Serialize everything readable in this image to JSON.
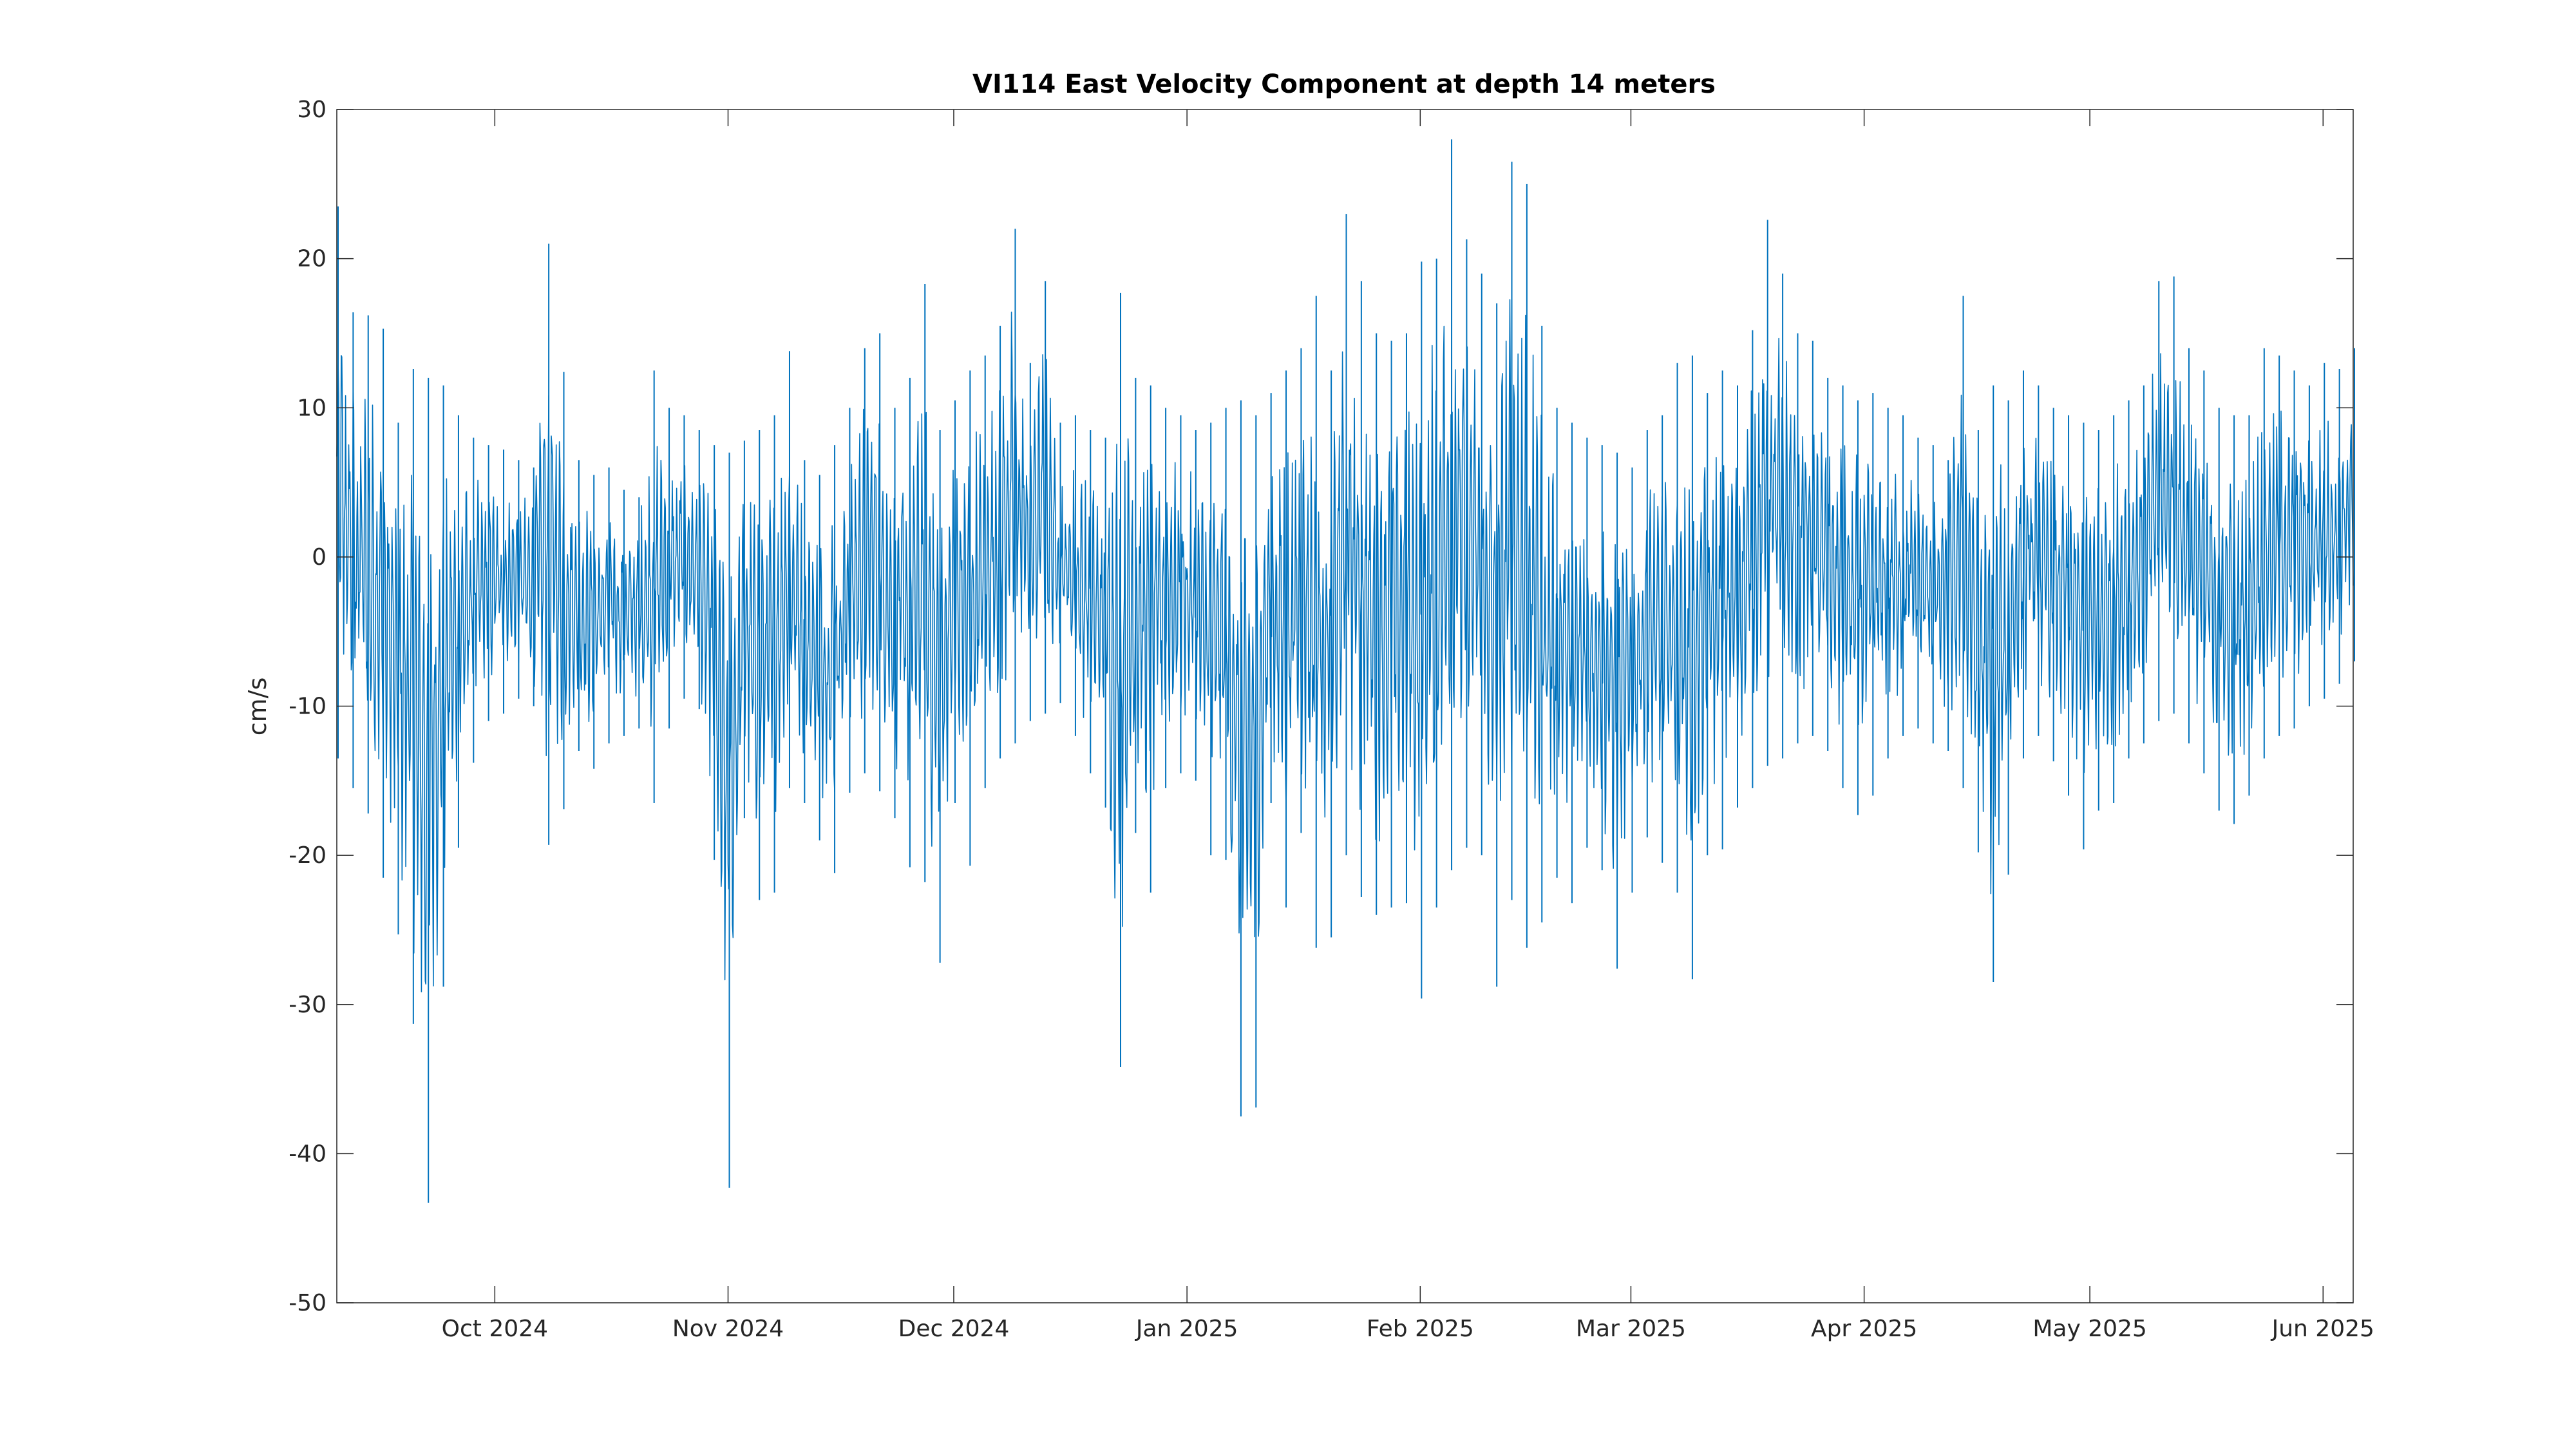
{
  "chart_data": {
    "type": "line",
    "title": "VI114 East Velocity Component at depth 14 meters",
    "xlabel": "",
    "ylabel": "cm/s",
    "xlim": [
      "2024-09-10",
      "2025-06-05"
    ],
    "ylim": [
      -50,
      30
    ],
    "grid": false,
    "x_ticks": [
      {
        "date": "2024-10-01",
        "label": "Oct 2024"
      },
      {
        "date": "2024-11-01",
        "label": "Nov 2024"
      },
      {
        "date": "2024-12-01",
        "label": "Dec 2024"
      },
      {
        "date": "2025-01-01",
        "label": "Jan 2025"
      },
      {
        "date": "2025-02-01",
        "label": "Feb 2025"
      },
      {
        "date": "2025-03-01",
        "label": "Mar 2025"
      },
      {
        "date": "2025-04-01",
        "label": "Apr 2025"
      },
      {
        "date": "2025-05-01",
        "label": "May 2025"
      },
      {
        "date": "2025-06-01",
        "label": "Jun 2025"
      }
    ],
    "y_ticks": [
      30,
      20,
      10,
      0,
      -10,
      -20,
      -30,
      -40,
      -50
    ],
    "series": [
      {
        "color": "#0072BD",
        "x": [
          "2024-09-10",
          "2024-09-12",
          "2024-09-14",
          "2024-09-16",
          "2024-09-18",
          "2024-09-20",
          "2024-09-22",
          "2024-09-24",
          "2024-09-26",
          "2024-09-28",
          "2024-09-30",
          "2024-10-02",
          "2024-10-04",
          "2024-10-06",
          "2024-10-08",
          "2024-10-10",
          "2024-10-12",
          "2024-10-14",
          "2024-10-16",
          "2024-10-18",
          "2024-10-20",
          "2024-10-22",
          "2024-10-24",
          "2024-10-26",
          "2024-10-28",
          "2024-10-30",
          "2024-11-01",
          "2024-11-03",
          "2024-11-05",
          "2024-11-07",
          "2024-11-09",
          "2024-11-11",
          "2024-11-13",
          "2024-11-15",
          "2024-11-17",
          "2024-11-19",
          "2024-11-21",
          "2024-11-23",
          "2024-11-25",
          "2024-11-27",
          "2024-11-29",
          "2024-12-01",
          "2024-12-03",
          "2024-12-05",
          "2024-12-07",
          "2024-12-09",
          "2024-12-11",
          "2024-12-13",
          "2024-12-15",
          "2024-12-17",
          "2024-12-19",
          "2024-12-21",
          "2024-12-23",
          "2024-12-25",
          "2024-12-27",
          "2024-12-29",
          "2024-12-31",
          "2025-01-02",
          "2025-01-04",
          "2025-01-06",
          "2025-01-08",
          "2025-01-10",
          "2025-01-12",
          "2025-01-14",
          "2025-01-16",
          "2025-01-18",
          "2025-01-20",
          "2025-01-22",
          "2025-01-24",
          "2025-01-26",
          "2025-01-28",
          "2025-01-30",
          "2025-02-01",
          "2025-02-03",
          "2025-02-05",
          "2025-02-07",
          "2025-02-09",
          "2025-02-11",
          "2025-02-13",
          "2025-02-15",
          "2025-02-17",
          "2025-02-19",
          "2025-02-21",
          "2025-02-23",
          "2025-02-25",
          "2025-02-27",
          "2025-03-01",
          "2025-03-03",
          "2025-03-05",
          "2025-03-07",
          "2025-03-09",
          "2025-03-11",
          "2025-03-13",
          "2025-03-15",
          "2025-03-17",
          "2025-03-19",
          "2025-03-21",
          "2025-03-23",
          "2025-03-25",
          "2025-03-27",
          "2025-03-29",
          "2025-03-31",
          "2025-04-02",
          "2025-04-04",
          "2025-04-06",
          "2025-04-08",
          "2025-04-10",
          "2025-04-12",
          "2025-04-14",
          "2025-04-16",
          "2025-04-18",
          "2025-04-20",
          "2025-04-22",
          "2025-04-24",
          "2025-04-26",
          "2025-04-28",
          "2025-04-30",
          "2025-05-02",
          "2025-05-04",
          "2025-05-06",
          "2025-05-08",
          "2025-05-10",
          "2025-05-12",
          "2025-05-14",
          "2025-05-16",
          "2025-05-18",
          "2025-05-20",
          "2025-05-22",
          "2025-05-24",
          "2025-05-26",
          "2025-05-28",
          "2025-05-30",
          "2025-06-01",
          "2025-06-03",
          "2025-06-05"
        ],
        "max": [
          23.5,
          16.4,
          16.2,
          15.3,
          9.0,
          12.6,
          12.0,
          11.5,
          9.5,
          8.0,
          7.5,
          7.2,
          6.5,
          6.0,
          21.0,
          12.4,
          6.5,
          5.5,
          6.0,
          4.5,
          4.0,
          12.5,
          10.0,
          9.5,
          8.5,
          7.5,
          7.0,
          7.8,
          8.5,
          9.5,
          13.8,
          6.5,
          5.5,
          7.5,
          10.0,
          14.0,
          15.0,
          10.0,
          12.0,
          18.3,
          8.5,
          10.5,
          12.5,
          13.5,
          15.5,
          22.0,
          13.0,
          18.5,
          9.0,
          9.5,
          8.5,
          8.0,
          17.7,
          12.0,
          11.5,
          10.0,
          9.5,
          8.5,
          9.0,
          10.0,
          10.5,
          9.5,
          11.0,
          12.5,
          14.0,
          17.5,
          12.5,
          23.0,
          18.5,
          15.0,
          14.5,
          15.0,
          19.8,
          20.0,
          28.0,
          21.3,
          19.0,
          17.0,
          26.5,
          25.0,
          15.5,
          10.0,
          9.0,
          8.0,
          7.5,
          7.0,
          6.0,
          8.5,
          9.5,
          13.0,
          13.5,
          11.0,
          12.5,
          11.5,
          15.2,
          22.6,
          19.0,
          15.0,
          14.5,
          12.0,
          11.5,
          10.5,
          11.0,
          10.0,
          9.5,
          8.0,
          7.5,
          6.5,
          17.5,
          8.5,
          11.5,
          10.5,
          12.5,
          11.5,
          10.0,
          9.5,
          9.0,
          8.5,
          9.5,
          10.5,
          11.5,
          18.5,
          18.8,
          14.0,
          12.5,
          10.0,
          9.5,
          9.5,
          14.0,
          13.5,
          12.5,
          11.5,
          13.0,
          12.6,
          14.0
        ],
        "min": [
          -13.5,
          -15.5,
          -17.2,
          -21.5,
          -25.3,
          -31.3,
          -43.3,
          -28.8,
          -19.5,
          -13.8,
          -11.0,
          -10.5,
          -9.5,
          -10.0,
          -19.3,
          -16.9,
          -13.0,
          -14.2,
          -12.5,
          -12.0,
          -11.5,
          -16.5,
          -11.5,
          -9.5,
          -10.2,
          -20.3,
          -42.3,
          -17.5,
          -23.0,
          -22.5,
          -15.5,
          -16.5,
          -19.0,
          -21.2,
          -15.8,
          -14.5,
          -15.7,
          -17.5,
          -20.8,
          -21.8,
          -27.2,
          -16.5,
          -20.7,
          -15.5,
          -13.5,
          -12.5,
          -11.0,
          -10.5,
          -9.8,
          -12.0,
          -14.5,
          -16.8,
          -34.2,
          -18.5,
          -22.5,
          -15.5,
          -14.5,
          -15.0,
          -20.0,
          -20.3,
          -37.5,
          -36.9,
          -16.5,
          -23.5,
          -18.5,
          -26.2,
          -25.5,
          -20.0,
          -22.8,
          -24.0,
          -23.5,
          -23.2,
          -29.6,
          -23.5,
          -21.0,
          -19.5,
          -20.0,
          -28.8,
          -23.0,
          -26.2,
          -24.5,
          -21.5,
          -23.2,
          -19.5,
          -21.0,
          -27.6,
          -22.5,
          -18.8,
          -20.5,
          -22.5,
          -28.3,
          -20.0,
          -19.6,
          -16.8,
          -15.5,
          -14.0,
          -13.5,
          -12.5,
          -12.0,
          -13.0,
          -15.5,
          -17.3,
          -16.0,
          -13.5,
          -12.0,
          -11.5,
          -12.5,
          -13.0,
          -15.5,
          -19.8,
          -28.5,
          -21.3,
          -13.5,
          -12.0,
          -13.7,
          -16.0,
          -19.6,
          -17.0,
          -16.5,
          -13.5,
          -12.5,
          -11.0,
          -10.5,
          -12.5,
          -14.5,
          -17.0,
          -17.9,
          -16.0,
          -13.5,
          -12.0,
          -11.5,
          -10.0,
          -9.5,
          -8.5,
          -7.0
        ]
      }
    ]
  }
}
